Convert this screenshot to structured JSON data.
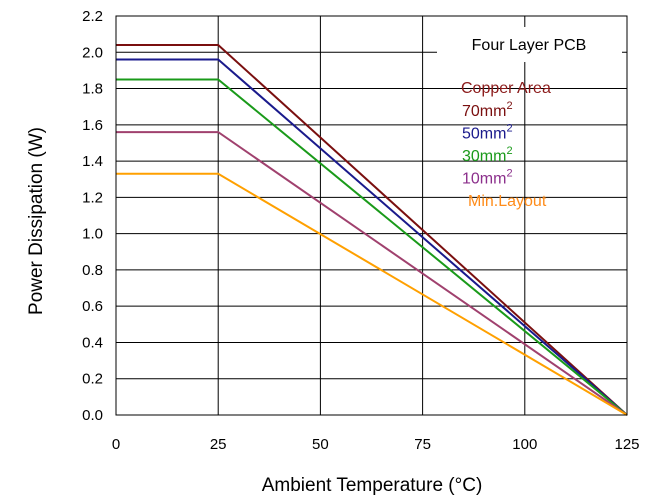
{
  "chart_data": {
    "type": "line",
    "xlabel": "Ambient Temperature (°C)",
    "ylabel": "Power Dissipation (W)",
    "xlim": [
      0,
      125
    ],
    "ylim": [
      0,
      2.2
    ],
    "xticks": [
      0,
      25,
      50,
      75,
      100,
      125
    ],
    "yticks": [
      0.0,
      0.2,
      0.4,
      0.6,
      0.8,
      1.0,
      1.2,
      1.4,
      1.6,
      1.8,
      2.0,
      2.2
    ],
    "xtick_labels": [
      "0",
      "25",
      "50",
      "75",
      "100",
      "125"
    ],
    "ytick_labels": [
      "0.0",
      "0.2",
      "0.4",
      "0.6",
      "0.8",
      "1.0",
      "1.2",
      "1.4",
      "1.6",
      "1.8",
      "2.0",
      "2.2"
    ],
    "grid": true,
    "legend": {
      "title": "Four Layer PCB",
      "subtitle": "Copper Area",
      "subtitle_color": "#8b1a1a",
      "placement": "top-right",
      "entries": [
        {
          "label": "70mm",
          "sup": "2",
          "color": "#7a0f0f"
        },
        {
          "label": "50mm",
          "sup": "2",
          "color": "#1a1a8c"
        },
        {
          "label": "30mm",
          "sup": "2",
          "color": "#1a9a1a"
        },
        {
          "label": "10mm",
          "sup": "2",
          "color": "#8b2f8b"
        },
        {
          "label": "Min.Layout",
          "sup": "",
          "color": "#ff8c1a"
        }
      ]
    },
    "series": [
      {
        "color": "#7a0f0f",
        "x": [
          0,
          25,
          125
        ],
        "y": [
          2.04,
          2.04,
          0.0
        ]
      },
      {
        "color": "#1a1a8c",
        "x": [
          0,
          25,
          125
        ],
        "y": [
          1.96,
          1.96,
          0.0
        ]
      },
      {
        "color": "#1a9a1a",
        "x": [
          0,
          25,
          125
        ],
        "y": [
          1.85,
          1.85,
          0.0
        ]
      },
      {
        "color": "#a0416e",
        "x": [
          0,
          25,
          125
        ],
        "y": [
          1.56,
          1.56,
          0.0
        ]
      },
      {
        "color": "#ffa000",
        "x": [
          0,
          25,
          125
        ],
        "y": [
          1.33,
          1.33,
          0.0
        ]
      }
    ]
  }
}
